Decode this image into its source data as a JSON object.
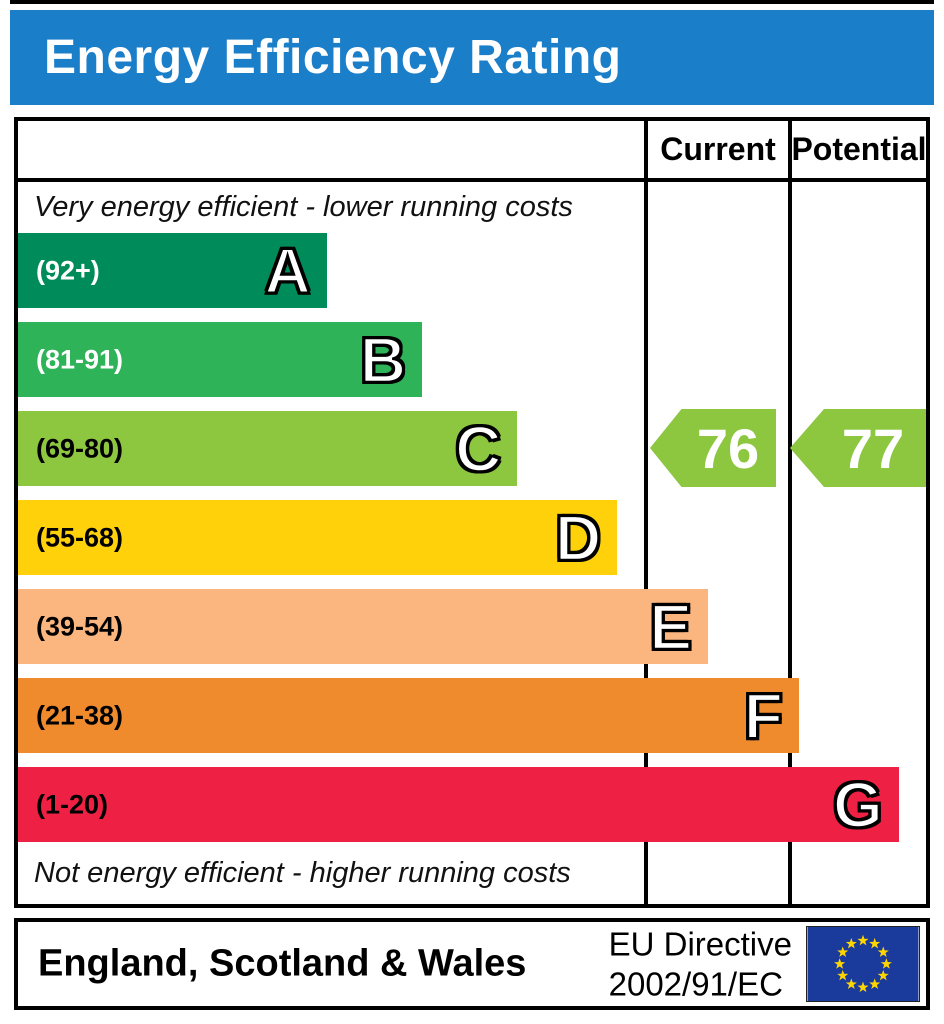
{
  "title": "Energy Efficiency Rating",
  "colors": {
    "title_bg": "#1b7ec9",
    "border": "#000000",
    "arrow": "#8dc63f",
    "eu_flag_bg": "#1a3a9c",
    "eu_star": "#ffd500"
  },
  "table": {
    "header": {
      "current": "Current",
      "potential": "Potential"
    },
    "top_note": "Very energy efficient - lower running costs",
    "bottom_note": "Not energy efficient - higher running costs",
    "bands": [
      {
        "letter": "A",
        "range": "(92+)",
        "color": "#008c5a",
        "width_pct": 34,
        "label_color": "#ffffff"
      },
      {
        "letter": "B",
        "range": "(81-91)",
        "color": "#2eb358",
        "width_pct": 44.5,
        "label_color": "#ffffff"
      },
      {
        "letter": "C",
        "range": "(69-80)",
        "color": "#8dc63f",
        "width_pct": 55,
        "label_color": "#000000"
      },
      {
        "letter": "D",
        "range": "(55-68)",
        "color": "#fed10b",
        "width_pct": 66,
        "label_color": "#000000"
      },
      {
        "letter": "E",
        "range": "(39-54)",
        "color": "#fbb57e",
        "width_pct": 76,
        "label_color": "#000000"
      },
      {
        "letter": "F",
        "range": "(21-38)",
        "color": "#f08b2d",
        "width_pct": 86,
        "label_color": "#000000"
      },
      {
        "letter": "G",
        "range": "(1-20)",
        "color": "#ee2043",
        "width_pct": 97,
        "label_color": "#000000"
      }
    ],
    "current": {
      "value": "76"
    },
    "potential": {
      "value": "77"
    }
  },
  "footer": {
    "region": "England, Scotland & Wales",
    "directive_line1": "EU Directive",
    "directive_line2": "2002/91/EC"
  },
  "chart_data": {
    "type": "bar",
    "title": "Energy Efficiency Rating",
    "orientation": "horizontal",
    "categories": [
      "A",
      "B",
      "C",
      "D",
      "E",
      "F",
      "G"
    ],
    "band_ranges": [
      "(92+)",
      "(81-91)",
      "(69-80)",
      "(55-68)",
      "(39-54)",
      "(21-38)",
      "(1-20)"
    ],
    "band_colors": [
      "#008c5a",
      "#2eb358",
      "#8dc63f",
      "#fed10b",
      "#fbb57e",
      "#f08b2d",
      "#ee2043"
    ],
    "bar_relative_widths_pct": [
      34,
      44.5,
      55,
      66,
      76,
      86,
      97
    ],
    "columns": [
      "Current",
      "Potential"
    ],
    "current_value": 76,
    "potential_value": 77,
    "current_band": "C",
    "potential_band": "C",
    "top_annotation": "Very energy efficient - lower running costs",
    "bottom_annotation": "Not energy efficient - higher running costs",
    "footer_region": "England, Scotland & Wales",
    "footer_directive": "EU Directive 2002/91/EC"
  }
}
